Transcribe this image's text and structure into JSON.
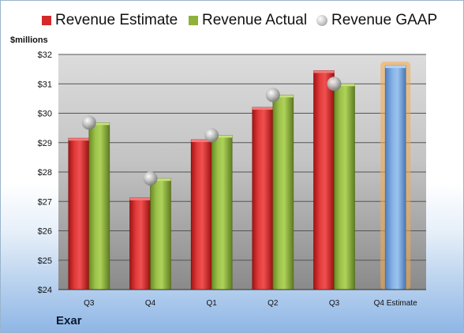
{
  "company_label": "Exar",
  "chart_data": {
    "type": "bar",
    "title": "",
    "xlabel": "",
    "ylabel": "$millions",
    "ylim": [
      24,
      32
    ],
    "yticks": [
      24,
      25,
      26,
      27,
      28,
      29,
      30,
      31,
      32
    ],
    "ytick_labels": [
      "$24",
      "$25",
      "$26",
      "$27",
      "$28",
      "$29",
      "$30",
      "$31",
      "$32"
    ],
    "grid": true,
    "legend_position": "top",
    "categories": [
      "Q3",
      "Q4",
      "Q1",
      "Q2",
      "Q3",
      "Q4 Estimate"
    ],
    "series": [
      {
        "name": "Revenue Estimate",
        "type": "bar",
        "color": "#d42a2a",
        "values": [
          29.15,
          27.12,
          29.1,
          30.2,
          31.45,
          null
        ]
      },
      {
        "name": "Revenue Actual",
        "type": "bar",
        "color": "#8fb13c",
        "values": [
          29.68,
          27.78,
          29.25,
          30.62,
          31.0,
          null
        ]
      },
      {
        "name": "Revenue GAAP",
        "type": "marker",
        "color": "#bdbdbd",
        "values": [
          29.68,
          27.78,
          29.25,
          30.62,
          31.0,
          null
        ]
      }
    ],
    "estimate": {
      "category": "Q4 Estimate",
      "value": 31.62,
      "color": "#6f9fd8",
      "glow": "#f5a94a"
    }
  }
}
